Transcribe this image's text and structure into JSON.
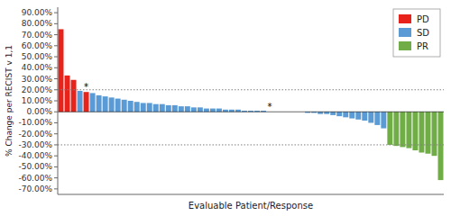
{
  "chart_data": {
    "type": "bar",
    "xlabel": "Evaluable Patient/Response",
    "ylabel": "% Change per RECIST v 1,1",
    "categories": [
      null,
      null,
      null,
      null,
      null,
      null,
      null,
      null,
      null,
      null,
      null,
      null,
      null,
      null,
      null,
      null,
      null,
      null,
      null,
      null,
      null,
      null,
      null,
      null,
      null,
      null,
      null,
      null,
      null,
      null,
      null,
      null,
      null,
      null,
      null,
      null,
      null,
      null,
      null,
      null,
      null,
      null,
      null,
      null,
      null,
      null,
      null,
      null,
      null,
      null,
      null,
      null,
      null,
      null,
      null,
      null,
      null,
      null,
      null,
      null,
      null
    ],
    "series": [
      {
        "name": "PD",
        "color": "#e8231c",
        "values": [
          75,
          33,
          29,
          null,
          18,
          null,
          null,
          null,
          null,
          null,
          null,
          null,
          null,
          null,
          null,
          null,
          null,
          null,
          null,
          null,
          null,
          null,
          null,
          null,
          null,
          null,
          null,
          null,
          null,
          null,
          null,
          null,
          null,
          null,
          null,
          null,
          null,
          null,
          null,
          null,
          null,
          null,
          null,
          null,
          null,
          null,
          null,
          null,
          null,
          null,
          null,
          null,
          null,
          null,
          null,
          null,
          null,
          null,
          null,
          null,
          null
        ]
      },
      {
        "name": "SD",
        "color": "#5b9bd5",
        "values": [
          null,
          null,
          null,
          19,
          null,
          17,
          15,
          14,
          13,
          12,
          11,
          10,
          9,
          8,
          8,
          7,
          7,
          6,
          6,
          5,
          5,
          4,
          4,
          3,
          3,
          3,
          2,
          2,
          2,
          1,
          1,
          1,
          1,
          0,
          0,
          0,
          0,
          0,
          0,
          -1,
          -1,
          -2,
          -2,
          -3,
          -4,
          -5,
          -6,
          -7,
          -8,
          -10,
          -12,
          -15,
          null,
          null,
          null,
          null,
          null,
          null,
          null,
          null,
          null
        ]
      },
      {
        "name": "PR",
        "color": "#70ad47",
        "values": [
          null,
          null,
          null,
          null,
          null,
          null,
          null,
          null,
          null,
          null,
          null,
          null,
          null,
          null,
          null,
          null,
          null,
          null,
          null,
          null,
          null,
          null,
          null,
          null,
          null,
          null,
          null,
          null,
          null,
          null,
          null,
          null,
          null,
          null,
          null,
          null,
          null,
          null,
          null,
          null,
          null,
          null,
          null,
          null,
          null,
          null,
          null,
          null,
          null,
          null,
          null,
          null,
          -30,
          -31,
          -32,
          -33,
          -35,
          -37,
          -38,
          -40,
          -62
        ]
      }
    ],
    "stacked": true,
    "reference_lines": [
      20,
      -30
    ],
    "annotations": [
      {
        "text": "*",
        "index": 4
      },
      {
        "text": "*",
        "index": 33
      }
    ],
    "ylim": [
      -75,
      95
    ],
    "yticks": [
      {
        "value": 90,
        "label": "90.00%"
      },
      {
        "value": 80,
        "label": "80.00%"
      },
      {
        "value": 70,
        "label": "70.00%"
      },
      {
        "value": 60,
        "label": "60.00%"
      },
      {
        "value": 50,
        "label": "50.00%"
      },
      {
        "value": 40,
        "label": "40.00%"
      },
      {
        "value": 30,
        "label": "30.00%"
      },
      {
        "value": 20,
        "label": "20.00%"
      },
      {
        "value": 10,
        "label": "10.00%"
      },
      {
        "value": 0,
        "label": "0.00%"
      },
      {
        "value": -10,
        "label": "-10.00%"
      },
      {
        "value": -20,
        "label": "-20.00%"
      },
      {
        "value": -30,
        "label": "-30.00%"
      },
      {
        "value": -40,
        "label": "-40.00%"
      },
      {
        "value": -50,
        "label": "-50.00%"
      },
      {
        "value": -60,
        "label": "-60.00%"
      },
      {
        "value": -70,
        "label": "-70.00%"
      }
    ],
    "grid": false,
    "legend": "upper right",
    "tick_labels": "y"
  }
}
